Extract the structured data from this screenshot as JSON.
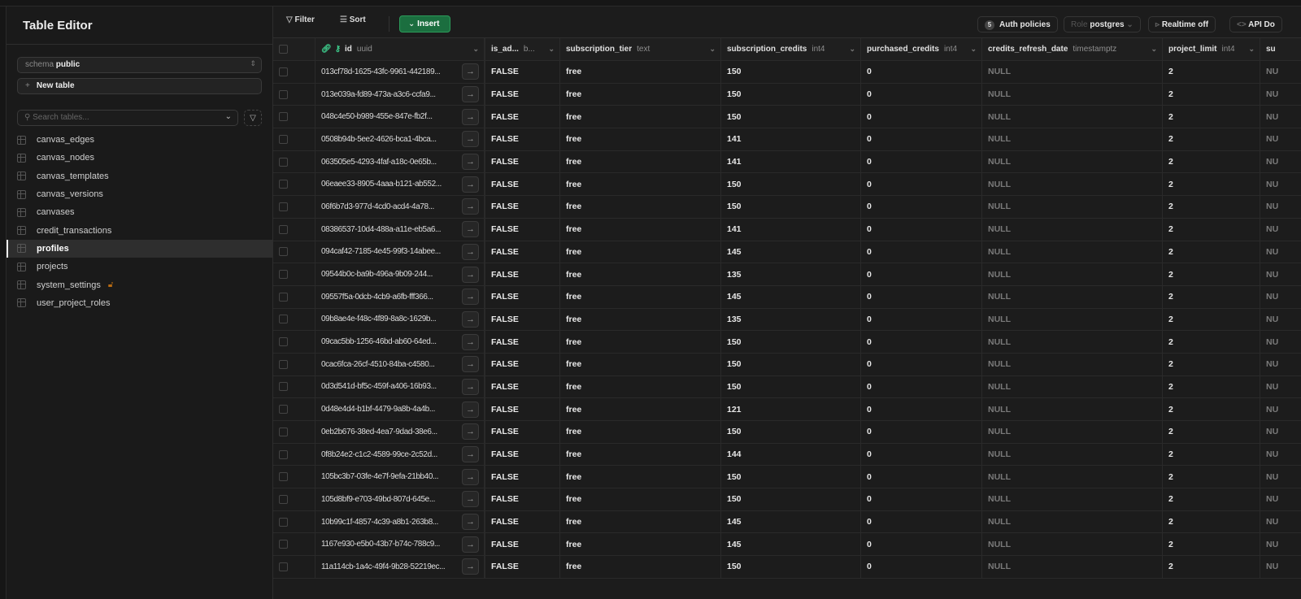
{
  "sidebar": {
    "title": "Table Editor",
    "schema_label": "schema",
    "schema_value": "public",
    "new_table": "New table",
    "search_placeholder": "Search tables...",
    "tables": [
      {
        "name": "canvas_edges"
      },
      {
        "name": "canvas_nodes"
      },
      {
        "name": "canvas_templates"
      },
      {
        "name": "canvas_versions"
      },
      {
        "name": "canvases"
      },
      {
        "name": "credit_transactions"
      },
      {
        "name": "profiles",
        "active": true
      },
      {
        "name": "projects"
      },
      {
        "name": "system_settings",
        "icon": "unlock-icon"
      },
      {
        "name": "user_project_roles"
      }
    ]
  },
  "toolbar": {
    "filter": "Filter",
    "sort": "Sort",
    "insert": "Insert",
    "auth_count": "5",
    "auth_policies": "Auth policies",
    "role_label": "Role",
    "role_value": "postgres",
    "realtime": "Realtime off",
    "api_docs": "API Do",
    "accent": "#3ecf8e"
  },
  "columns": [
    {
      "name": "id",
      "type": "uuid"
    },
    {
      "name": "is_ad...",
      "type": "b..."
    },
    {
      "name": "subscription_tier",
      "type": "text"
    },
    {
      "name": "subscription_credits",
      "type": "int4"
    },
    {
      "name": "purchased_credits",
      "type": "int4"
    },
    {
      "name": "credits_refresh_date",
      "type": "timestamptz"
    },
    {
      "name": "project_limit",
      "type": "int4"
    },
    {
      "name": "su",
      "type": ""
    }
  ],
  "rows": [
    [
      "013cf78d-1625-43fc-9961-442189...",
      "FALSE",
      "free",
      "150",
      "0",
      "NULL",
      "2",
      "NU"
    ],
    [
      "013e039a-fd89-473a-a3c6-ccfa9...",
      "FALSE",
      "free",
      "150",
      "0",
      "NULL",
      "2",
      "NU"
    ],
    [
      "048c4e50-b989-455e-847e-fb2f...",
      "FALSE",
      "free",
      "150",
      "0",
      "NULL",
      "2",
      "NU"
    ],
    [
      "0508b94b-5ee2-4626-bca1-4bca...",
      "FALSE",
      "free",
      "141",
      "0",
      "NULL",
      "2",
      "NU"
    ],
    [
      "063505e5-4293-4faf-a18c-0e65b...",
      "FALSE",
      "free",
      "141",
      "0",
      "NULL",
      "2",
      "NU"
    ],
    [
      "06eaee33-8905-4aaa-b121-ab552...",
      "FALSE",
      "free",
      "150",
      "0",
      "NULL",
      "2",
      "NU"
    ],
    [
      "06f6b7d3-977d-4cd0-acd4-4a78...",
      "FALSE",
      "free",
      "150",
      "0",
      "NULL",
      "2",
      "NU"
    ],
    [
      "08386537-10d4-488a-a11e-eb5a6...",
      "FALSE",
      "free",
      "141",
      "0",
      "NULL",
      "2",
      "NU"
    ],
    [
      "094caf42-7185-4e45-99f3-14abee...",
      "FALSE",
      "free",
      "145",
      "0",
      "NULL",
      "2",
      "NU"
    ],
    [
      "09544b0c-ba9b-496a-9b09-244...",
      "FALSE",
      "free",
      "135",
      "0",
      "NULL",
      "2",
      "NU"
    ],
    [
      "09557f5a-0dcb-4cb9-a6fb-fff366...",
      "FALSE",
      "free",
      "145",
      "0",
      "NULL",
      "2",
      "NU"
    ],
    [
      "09b8ae4e-f48c-4f89-8a8c-1629b...",
      "FALSE",
      "free",
      "135",
      "0",
      "NULL",
      "2",
      "NU"
    ],
    [
      "09cac5bb-1256-46bd-ab60-64ed...",
      "FALSE",
      "free",
      "150",
      "0",
      "NULL",
      "2",
      "NU"
    ],
    [
      "0cac6fca-26cf-4510-84ba-c4580...",
      "FALSE",
      "free",
      "150",
      "0",
      "NULL",
      "2",
      "NU"
    ],
    [
      "0d3d541d-bf5c-459f-a406-16b93...",
      "FALSE",
      "free",
      "150",
      "0",
      "NULL",
      "2",
      "NU"
    ],
    [
      "0d48e4d4-b1bf-4479-9a8b-4a4b...",
      "FALSE",
      "free",
      "121",
      "0",
      "NULL",
      "2",
      "NU"
    ],
    [
      "0eb2b676-38ed-4ea7-9dad-38e6...",
      "FALSE",
      "free",
      "150",
      "0",
      "NULL",
      "2",
      "NU"
    ],
    [
      "0f8b24e2-c1c2-4589-99ce-2c52d...",
      "FALSE",
      "free",
      "144",
      "0",
      "NULL",
      "2",
      "NU"
    ],
    [
      "105bc3b7-03fe-4e7f-9efa-21bb40...",
      "FALSE",
      "free",
      "150",
      "0",
      "NULL",
      "2",
      "NU"
    ],
    [
      "105d8bf9-e703-49bd-807d-645e...",
      "FALSE",
      "free",
      "150",
      "0",
      "NULL",
      "2",
      "NU"
    ],
    [
      "10b99c1f-4857-4c39-a8b1-263b8...",
      "FALSE",
      "free",
      "145",
      "0",
      "NULL",
      "2",
      "NU"
    ],
    [
      "1167e930-e5b0-43b7-b74c-788c9...",
      "FALSE",
      "free",
      "145",
      "0",
      "NULL",
      "2",
      "NU"
    ],
    [
      "11a114cb-1a4c-49f4-9b28-52219ec...",
      "FALSE",
      "free",
      "150",
      "0",
      "NULL",
      "2",
      "NU"
    ]
  ]
}
